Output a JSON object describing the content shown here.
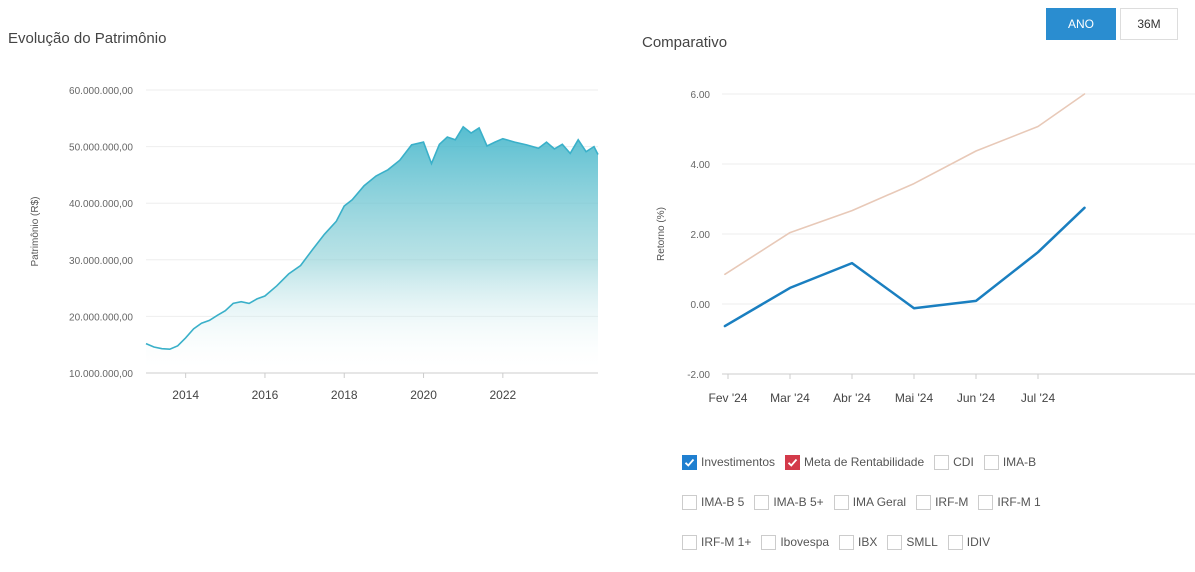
{
  "left": {
    "title": "Evolução do Patrimônio",
    "ylabel": "Patrimônio (R$)"
  },
  "right": {
    "title": "Comparativo",
    "ylabel": "Retorno (%)"
  },
  "buttons": {
    "ano": "ANO",
    "m36": "36M"
  },
  "colors": {
    "investimentos": "#1a7fc0",
    "meta": "#e8c9b8",
    "area_line": "#3ab0c9",
    "active_button": "#2a8dd0",
    "check_blue": "#1f7fd0",
    "check_red": "#d33a4a"
  },
  "chart_data": [
    {
      "type": "area",
      "title": "Evolução do Patrimônio",
      "xlabel": "",
      "ylabel": "Patrimônio (R$)",
      "ylim": [
        10000000,
        60000000
      ],
      "yticks": [
        "10.000.000,00",
        "20.000.000,00",
        "30.000.000,00",
        "40.000.000,00",
        "50.000.000,00",
        "60.000.000,00"
      ],
      "ytick_values": [
        10000000,
        20000000,
        30000000,
        40000000,
        50000000,
        60000000
      ],
      "xticks": [
        "2014",
        "2016",
        "2018",
        "2020",
        "2022"
      ],
      "xtick_values": [
        2014,
        2016,
        2018,
        2020,
        2022
      ],
      "xlim": [
        2013.0,
        2024.4
      ],
      "x": [
        2013.0,
        2013.2,
        2013.4,
        2013.6,
        2013.8,
        2014.0,
        2014.2,
        2014.4,
        2014.6,
        2014.8,
        2015.0,
        2015.2,
        2015.4,
        2015.6,
        2015.8,
        2016.0,
        2016.3,
        2016.6,
        2016.9,
        2017.2,
        2017.5,
        2017.8,
        2018.0,
        2018.2,
        2018.5,
        2018.8,
        2019.1,
        2019.4,
        2019.7,
        2020.0,
        2020.2,
        2020.4,
        2020.6,
        2020.8,
        2021.0,
        2021.2,
        2021.4,
        2021.6,
        2021.8,
        2022.0,
        2022.3,
        2022.6,
        2022.9,
        2023.1,
        2023.3,
        2023.5,
        2023.7,
        2023.9,
        2024.1,
        2024.3,
        2024.4
      ],
      "values": [
        15200000,
        14600000,
        14300000,
        14200000,
        14800000,
        16200000,
        17800000,
        18800000,
        19300000,
        20200000,
        21000000,
        22300000,
        22600000,
        22300000,
        23100000,
        23600000,
        25400000,
        27500000,
        29000000,
        31800000,
        34500000,
        36800000,
        39500000,
        40600000,
        43100000,
        44800000,
        45900000,
        47600000,
        50300000,
        50800000,
        47000000,
        50400000,
        51700000,
        51200000,
        53500000,
        52400000,
        53300000,
        50100000,
        50800000,
        51400000,
        50800000,
        50300000,
        49700000,
        50800000,
        49600000,
        50400000,
        48800000,
        51200000,
        49100000,
        50000000,
        48600000
      ]
    },
    {
      "type": "line",
      "title": "Comparativo",
      "xlabel": "",
      "ylabel": "Retorno (%)",
      "ylim": [
        -2,
        6
      ],
      "yticks": [
        "-2.00",
        "0.00",
        "2.00",
        "4.00",
        "6.00"
      ],
      "ytick_values": [
        -2,
        0,
        2,
        4,
        6
      ],
      "categories": [
        "Fev '24",
        "Mar '24",
        "Abr '24",
        "Mai '24",
        "Jun '24",
        "Jul '24"
      ],
      "series": [
        {
          "name": "Investimentos",
          "x": [
            -0.05,
            1,
            2,
            3,
            4,
            5,
            5.75
          ],
          "values": [
            -0.63,
            0.46,
            1.17,
            -0.12,
            0.09,
            1.48,
            2.75
          ]
        },
        {
          "name": "Meta de Rentabilidade",
          "x": [
            -0.05,
            1,
            2,
            3,
            4,
            5,
            5.75
          ],
          "values": [
            0.85,
            2.04,
            2.67,
            3.44,
            4.37,
            5.07,
            6.0
          ]
        }
      ]
    }
  ],
  "legend": {
    "items": [
      {
        "label": "Investimentos",
        "checked": true,
        "color": "#1f7fd0"
      },
      {
        "label": "Meta de Rentabilidade",
        "checked": true,
        "color": "#d33a4a"
      },
      {
        "label": "CDI",
        "checked": false
      },
      {
        "label": "IMA-B",
        "checked": false
      },
      {
        "label": "IMA-B 5",
        "checked": false
      },
      {
        "label": "IMA-B 5+",
        "checked": false
      },
      {
        "label": "IMA Geral",
        "checked": false
      },
      {
        "label": "IRF-M",
        "checked": false
      },
      {
        "label": "IRF-M 1",
        "checked": false
      },
      {
        "label": "IRF-M 1+",
        "checked": false
      },
      {
        "label": "Ibovespa",
        "checked": false
      },
      {
        "label": "IBX",
        "checked": false
      },
      {
        "label": "SMLL",
        "checked": false
      },
      {
        "label": "IDIV",
        "checked": false
      }
    ]
  }
}
